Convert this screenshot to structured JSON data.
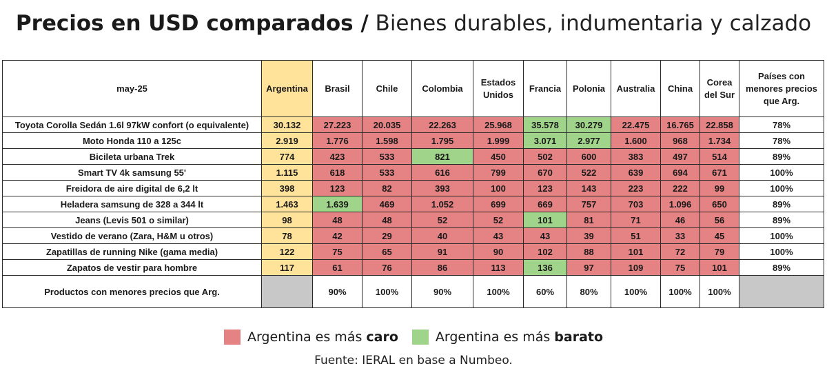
{
  "title": {
    "bold": "Precios en USD comparados /",
    "rest": "Bienes durables, indumentaria y calzado"
  },
  "colors": {
    "caro": "#e58384",
    "barato": "#9fd48a",
    "argentina": "#ffe39a",
    "na": "#c8c8c8"
  },
  "legend": {
    "caro_prefix": "Argentina es más",
    "caro_bold": "caro",
    "barato_prefix": "Argentina es más",
    "barato_bold": "barato"
  },
  "source": "Fuente: IERAL en base a Numbeo.",
  "chart_data": {
    "type": "table",
    "corner_label": "may-25",
    "columns": [
      "Argentina",
      "Brasil",
      "Chile",
      "Colombia",
      "Estados Unidos",
      "Francia",
      "Polonia",
      "Australia",
      "China",
      "Corea del Sur"
    ],
    "last_column": "Países con menores precios que Arg.",
    "rows": [
      {
        "label": "Toyota Corolla Sedán 1.6l 97kW confort (o equivalente)",
        "values": [
          "30.132",
          "27.223",
          "20.035",
          "22.263",
          "25.968",
          "35.578",
          "30.279",
          "22.475",
          "16.765",
          "22.858"
        ],
        "status": [
          "arg",
          "caro",
          "caro",
          "caro",
          "caro",
          "barato",
          "barato",
          "caro",
          "caro",
          "caro"
        ],
        "share": "78%"
      },
      {
        "label": "Moto Honda 110 a 125c",
        "values": [
          "2.919",
          "1.776",
          "1.598",
          "1.795",
          "1.999",
          "3.071",
          "2.977",
          "1.600",
          "968",
          "1.734"
        ],
        "status": [
          "arg",
          "caro",
          "caro",
          "caro",
          "caro",
          "barato",
          "barato",
          "caro",
          "caro",
          "caro"
        ],
        "share": "78%"
      },
      {
        "label": "Bicileta urbana Trek",
        "values": [
          "774",
          "423",
          "533",
          "821",
          "450",
          "502",
          "600",
          "383",
          "497",
          "514"
        ],
        "status": [
          "arg",
          "caro",
          "caro",
          "barato",
          "caro",
          "caro",
          "caro",
          "caro",
          "caro",
          "caro"
        ],
        "share": "89%"
      },
      {
        "label": "Smart TV 4k samsung 55'",
        "values": [
          "1.115",
          "618",
          "533",
          "616",
          "799",
          "670",
          "522",
          "639",
          "694",
          "671"
        ],
        "status": [
          "arg",
          "caro",
          "caro",
          "caro",
          "caro",
          "caro",
          "caro",
          "caro",
          "caro",
          "caro"
        ],
        "share": "100%"
      },
      {
        "label": "Freidora de aire digital de 6,2 lt",
        "values": [
          "398",
          "123",
          "82",
          "393",
          "100",
          "123",
          "143",
          "223",
          "222",
          "99"
        ],
        "status": [
          "arg",
          "caro",
          "caro",
          "caro",
          "caro",
          "caro",
          "caro",
          "caro",
          "caro",
          "caro"
        ],
        "share": "100%"
      },
      {
        "label": "Heladera samsung de 328 a 344 lt",
        "values": [
          "1.463",
          "1.639",
          "469",
          "1.052",
          "699",
          "669",
          "757",
          "703",
          "1.096",
          "650"
        ],
        "status": [
          "arg",
          "barato",
          "caro",
          "caro",
          "caro",
          "caro",
          "caro",
          "caro",
          "caro",
          "caro"
        ],
        "share": "89%"
      },
      {
        "label": "Jeans (Levis 501 o similar)",
        "values": [
          "98",
          "48",
          "48",
          "52",
          "52",
          "101",
          "81",
          "71",
          "46",
          "56"
        ],
        "status": [
          "arg",
          "caro",
          "caro",
          "caro",
          "caro",
          "barato",
          "caro",
          "caro",
          "caro",
          "caro"
        ],
        "share": "89%"
      },
      {
        "label": "Vestido de verano (Zara, H&M u otros)",
        "values": [
          "78",
          "42",
          "29",
          "40",
          "43",
          "43",
          "39",
          "51",
          "33",
          "45"
        ],
        "status": [
          "arg",
          "caro",
          "caro",
          "caro",
          "caro",
          "caro",
          "caro",
          "caro",
          "caro",
          "caro"
        ],
        "share": "100%"
      },
      {
        "label": "Zapatillas de running Nike (gama media)",
        "values": [
          "122",
          "75",
          "65",
          "91",
          "90",
          "102",
          "88",
          "101",
          "72",
          "79"
        ],
        "status": [
          "arg",
          "caro",
          "caro",
          "caro",
          "caro",
          "caro",
          "caro",
          "caro",
          "caro",
          "caro"
        ],
        "share": "100%"
      },
      {
        "label": "Zapatos de vestir para hombre",
        "values": [
          "117",
          "61",
          "76",
          "86",
          "113",
          "136",
          "97",
          "109",
          "75",
          "101"
        ],
        "status": [
          "arg",
          "caro",
          "caro",
          "caro",
          "caro",
          "barato",
          "caro",
          "caro",
          "caro",
          "caro"
        ],
        "share": "89%"
      }
    ],
    "footer": {
      "label": "Productos con menores precios que Arg.",
      "values": [
        "",
        "90%",
        "100%",
        "90%",
        "100%",
        "60%",
        "80%",
        "100%",
        "100%",
        "100%"
      ]
    }
  }
}
